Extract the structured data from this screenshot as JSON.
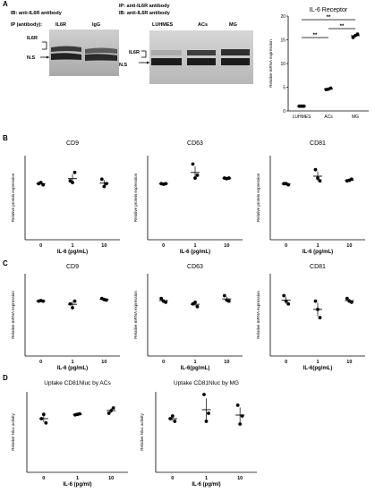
{
  "panel_letters": [
    "A",
    "B",
    "C",
    "D"
  ],
  "panel_a": {
    "blot1": {
      "ib_label": "IB: anti-IL6R antibody",
      "ip_label": "IP (antibody):",
      "lanes": [
        "IL6R",
        "IgG"
      ],
      "band_labels": [
        "IL6R",
        "N.S"
      ]
    },
    "blot2": {
      "ip_label": "IP: anti-IL6R antibody",
      "ib_label": "IB: anti-IL6R antibody",
      "lanes": [
        "LUHMES",
        "ACs",
        "MG"
      ],
      "band_labels": [
        "IL6R",
        "N.S"
      ]
    }
  },
  "chart_data": [
    {
      "id": "il6-receptor",
      "type": "scatter",
      "title": "IL-6 Receptor",
      "ylabel": "Relative mRNA expression",
      "xlabel": "",
      "categories": [
        "LUHMES",
        "ACs",
        "MG"
      ],
      "ylim": [
        0,
        20
      ],
      "yticks": [
        0,
        5,
        10,
        15,
        20
      ],
      "points": [
        [
          1.0,
          1.0,
          1.0
        ],
        [
          4.5,
          4.8,
          4.6
        ],
        [
          15.5,
          16.2,
          15.9
        ]
      ],
      "significance": [
        "**",
        "**",
        "**"
      ]
    },
    {
      "id": "b-cd9",
      "type": "scatter",
      "title": "CD9",
      "ylabel": "Relative protein expression",
      "xlabel": "IL-6 (pg/mL)",
      "categories": [
        "0",
        "1",
        "10"
      ],
      "ylim": [
        0,
        1.5
      ],
      "points": [
        [
          1.0,
          0.98,
          1.02
        ],
        [
          1.05,
          1.2,
          1.02
        ],
        [
          1.08,
          1.0,
          0.95
        ]
      ]
    },
    {
      "id": "b-cd63",
      "type": "scatter",
      "title": "CD63",
      "ylabel": "Relative protein expression",
      "xlabel": "IL-6 (pg/mL)",
      "categories": [
        "0",
        "1",
        "10"
      ],
      "ylim": [
        0,
        1.5
      ],
      "points": [
        [
          1.0,
          1.0,
          0.99
        ],
        [
          1.35,
          1.15,
          1.1
        ],
        [
          1.1,
          1.1,
          1.09
        ]
      ]
    },
    {
      "id": "b-cd81",
      "type": "scatter",
      "title": "CD81",
      "ylabel": "Relative protein expression",
      "xlabel": "IL-6 (pg/mL)",
      "categories": [
        "0",
        "1",
        "10"
      ],
      "ylim": [
        0,
        1.5
      ],
      "points": [
        [
          1.0,
          0.98,
          1.0
        ],
        [
          1.25,
          1.05,
          1.1
        ],
        [
          1.05,
          1.08,
          1.06
        ]
      ]
    },
    {
      "id": "c-cd9",
      "type": "scatter",
      "title": "CD9",
      "ylabel": "Relative mRNA expression",
      "xlabel": "IL-6 (pg/mL)",
      "categories": [
        "0",
        "1",
        "10"
      ],
      "ylim": [
        0,
        1.5
      ],
      "points": [
        [
          1.0,
          1.0,
          1.01
        ],
        [
          0.95,
          1.0,
          0.88
        ],
        [
          1.05,
          1.02,
          1.03
        ]
      ]
    },
    {
      "id": "c-cd63",
      "type": "scatter",
      "title": "CD63",
      "ylabel": "Relative mRNA expression",
      "xlabel": "IL-6(pg/mL)",
      "categories": [
        "0",
        "1",
        "10"
      ],
      "ylim": [
        0,
        1.5
      ],
      "points": [
        [
          1.05,
          0.98,
          1.0
        ],
        [
          0.95,
          0.9,
          0.98
        ],
        [
          1.1,
          1.0,
          1.02
        ]
      ]
    },
    {
      "id": "c-cd81",
      "type": "scatter",
      "title": "CD81",
      "ylabel": "Relative mRNA expression",
      "xlabel": "IL-6(pg/mL)",
      "categories": [
        "0",
        "1",
        "10"
      ],
      "ylim": [
        0,
        1.5
      ],
      "points": [
        [
          1.1,
          0.95,
          1.0
        ],
        [
          1.0,
          0.7,
          0.85
        ],
        [
          1.05,
          0.98,
          1.0
        ]
      ]
    },
    {
      "id": "d-acs",
      "type": "scatter",
      "title": "Uptake CD81Nluc by ACs",
      "ylabel": "Relative Nluc activity",
      "xlabel": "IL-6 (pg/ml)",
      "categories": [
        "0",
        "1",
        "10"
      ],
      "ylim": [
        0,
        1.5
      ],
      "points": [
        [
          1.0,
          0.92,
          1.08
        ],
        [
          1.07,
          1.09,
          1.08
        ],
        [
          1.1,
          1.2,
          1.15
        ]
      ]
    },
    {
      "id": "d-mg",
      "type": "scatter",
      "title": "Uptake CD81Nluc by MG",
      "ylabel": "Relative Nluc activity",
      "xlabel": "IL-6 (pg/ml)",
      "categories": [
        "0",
        "1",
        "10"
      ],
      "ylim": [
        0,
        1.5
      ],
      "points": [
        [
          1.0,
          0.95,
          1.05
        ],
        [
          1.45,
          1.1,
          0.95
        ],
        [
          1.25,
          1.05,
          0.9
        ]
      ]
    }
  ]
}
